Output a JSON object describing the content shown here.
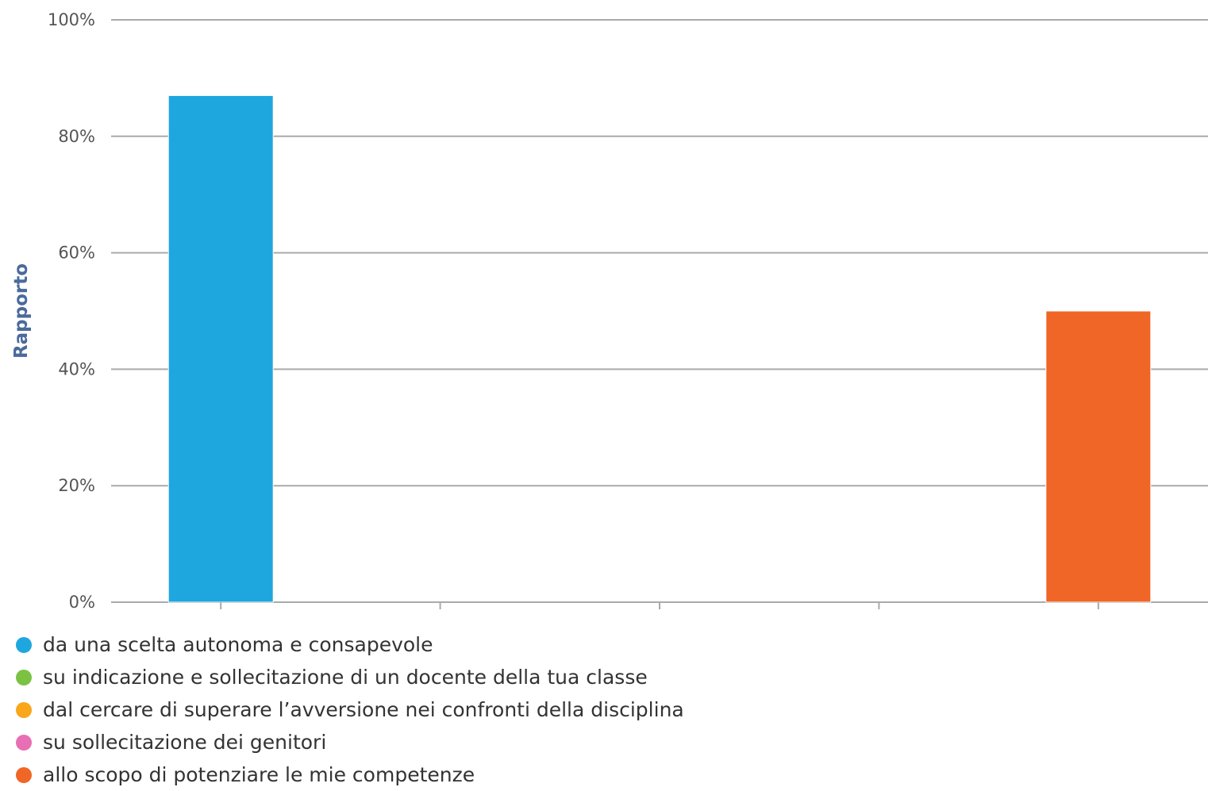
{
  "chart_data": {
    "type": "bar",
    "ylabel": "Rapporto",
    "xlabel": "",
    "title": "",
    "ylim": [
      0,
      100
    ],
    "y_ticks": [
      "0%",
      "20%",
      "40%",
      "60%",
      "80%",
      "100%"
    ],
    "grid": true,
    "legend_position": "bottom-left",
    "categories": [
      "da una scelta autonoma e consapevole",
      "su indicazione e sollecitazione di un docente della tua classe",
      "dal cercare di superare l’avversione nei confronti della disciplina",
      "su sollecitazione dei genitori",
      "allo scopo di potenziare le mie competenze"
    ],
    "values": [
      87,
      0,
      0,
      0,
      50
    ],
    "colors": [
      "#1ea7df",
      "#7cc242",
      "#f9a61a",
      "#e86fb4",
      "#ef6627"
    ]
  },
  "colors": {
    "grid": "#aaaaaa",
    "axis": "#aaaaaa",
    "bar_border": "#ffffff"
  }
}
